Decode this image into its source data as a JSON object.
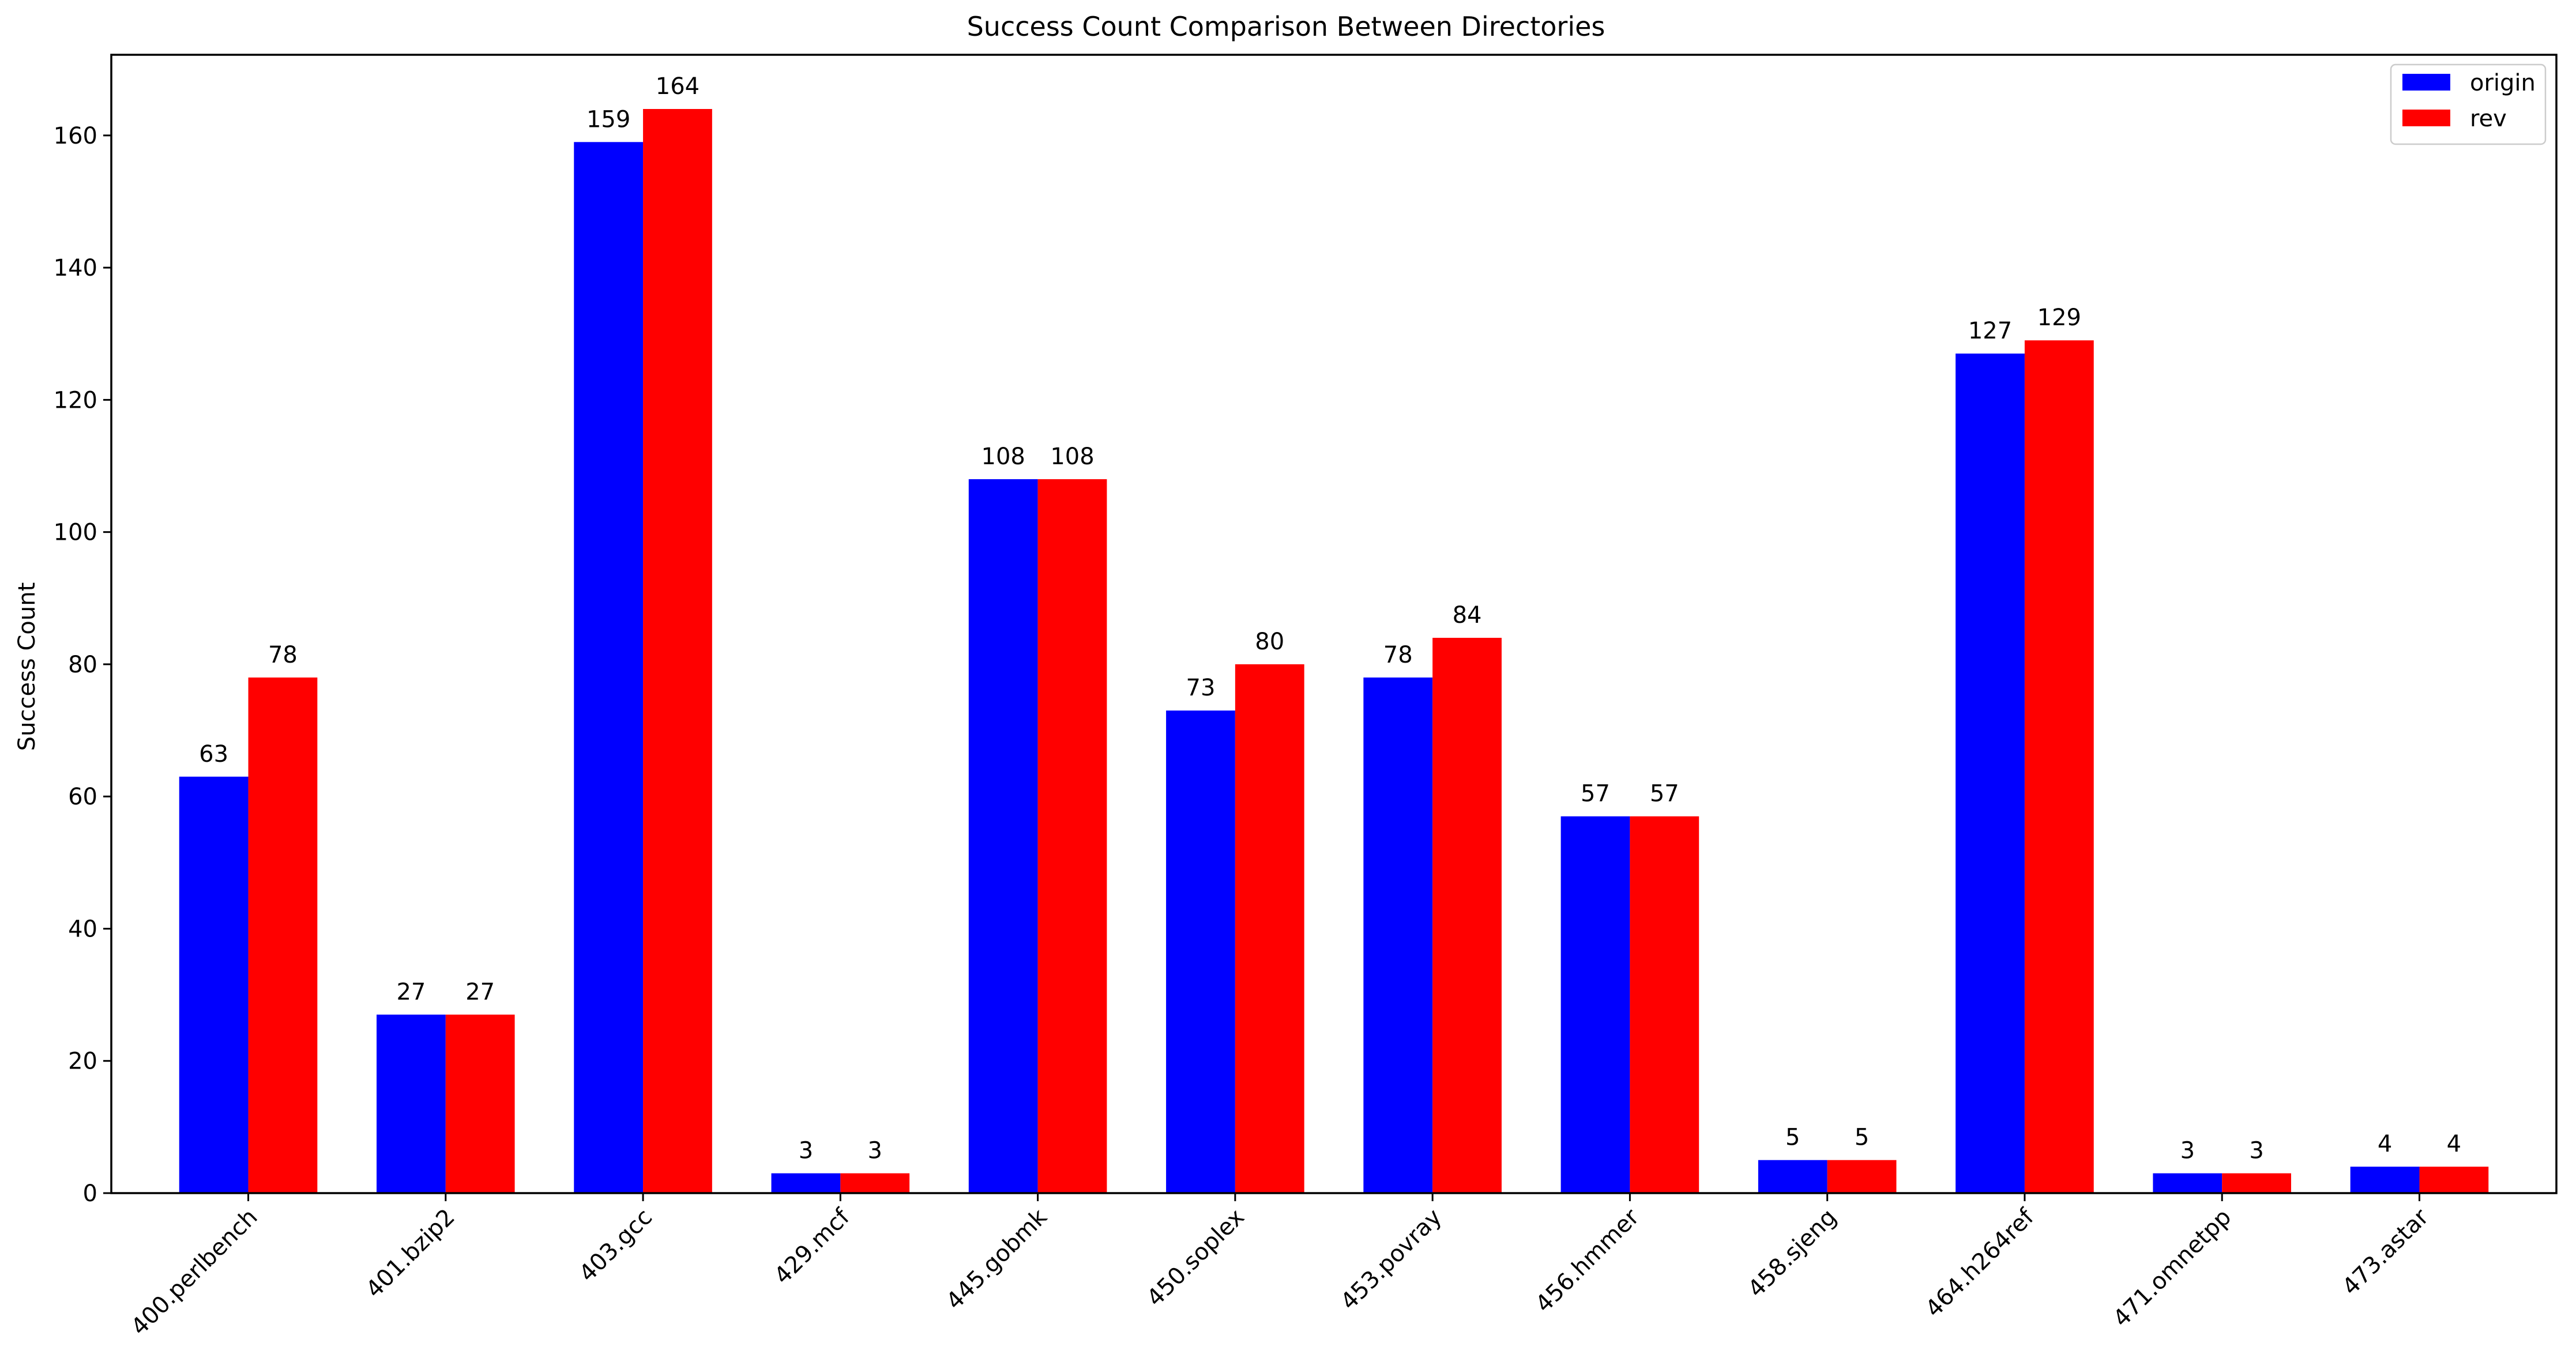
{
  "chart_data": {
    "type": "bar",
    "title": "Success Count Comparison Between Directories",
    "xlabel": "",
    "ylabel": "Success Count",
    "categories": [
      "400.perlbench",
      "401.bzip2",
      "403.gcc",
      "429.mcf",
      "445.gobmk",
      "450.soplex",
      "453.povray",
      "456.hmmer",
      "458.sjeng",
      "464.h264ref",
      "471.omnetpp",
      "473.astar"
    ],
    "series": [
      {
        "name": "origin",
        "color": "#0000ff",
        "values": [
          63,
          27,
          159,
          3,
          108,
          73,
          78,
          57,
          5,
          127,
          3,
          4
        ]
      },
      {
        "name": "rev",
        "color": "#ff0000",
        "values": [
          78,
          27,
          164,
          3,
          108,
          80,
          84,
          57,
          5,
          129,
          3,
          4
        ]
      }
    ],
    "ylim": [
      0,
      172.2
    ],
    "yticks": [
      0,
      20,
      40,
      60,
      80,
      100,
      120,
      140,
      160
    ],
    "grid": false,
    "legend_position": "top-right",
    "data_labels": true
  }
}
